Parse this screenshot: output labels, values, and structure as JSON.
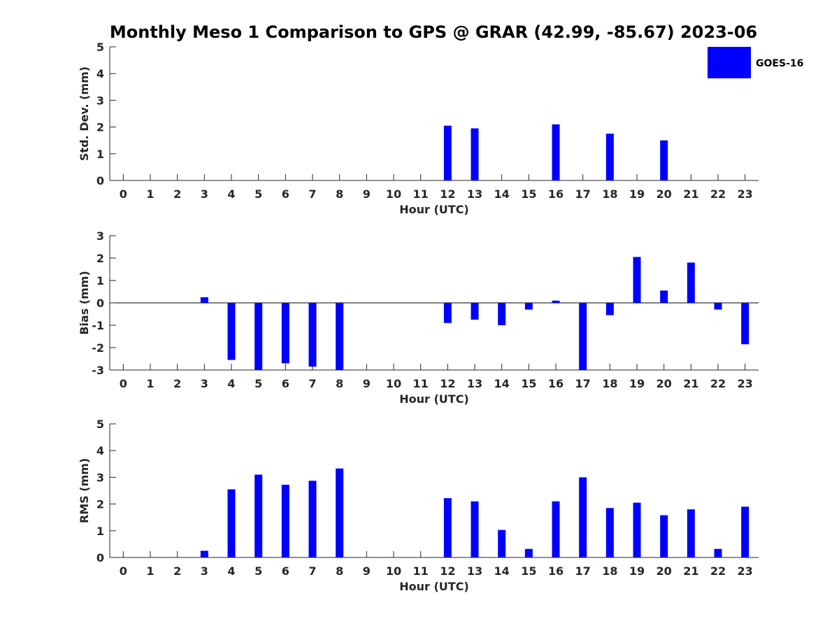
{
  "title": "Monthly Meso 1 Comparison to GPS @ GRAR (42.99, -85.67) 2023-06",
  "legend": {
    "label": "GOES-16",
    "color": "#0000ff",
    "placement": "top-right"
  },
  "colors": {
    "bar": "#0000ff",
    "axis": "#262626",
    "zero_line": "#000000"
  },
  "chart_data": [
    {
      "type": "bar",
      "xlabel": "Hour (UTC)",
      "ylabel": "Std. Dev. (mm)",
      "ylim": [
        0,
        5
      ],
      "yticks": [
        0,
        1,
        2,
        3,
        4,
        5
      ],
      "categories": [
        "0",
        "1",
        "2",
        "3",
        "4",
        "5",
        "6",
        "7",
        "8",
        "9",
        "10",
        "11",
        "12",
        "13",
        "14",
        "15",
        "16",
        "17",
        "18",
        "19",
        "20",
        "21",
        "22",
        "23"
      ],
      "series": [
        {
          "name": "GOES-16",
          "values": [
            null,
            null,
            null,
            null,
            null,
            null,
            null,
            null,
            null,
            null,
            null,
            null,
            2.05,
            1.95,
            null,
            null,
            2.1,
            null,
            1.75,
            null,
            1.5,
            null,
            null,
            null
          ]
        }
      ],
      "grid": false
    },
    {
      "type": "bar",
      "xlabel": "Hour (UTC)",
      "ylabel": "Bias (mm)",
      "ylim": [
        -3,
        3
      ],
      "yticks": [
        -3,
        -2,
        -1,
        0,
        1,
        2,
        3
      ],
      "categories": [
        "0",
        "1",
        "2",
        "3",
        "4",
        "5",
        "6",
        "7",
        "8",
        "9",
        "10",
        "11",
        "12",
        "13",
        "14",
        "15",
        "16",
        "17",
        "18",
        "19",
        "20",
        "21",
        "22",
        "23"
      ],
      "series": [
        {
          "name": "GOES-16",
          "values": [
            null,
            null,
            null,
            0.25,
            -2.55,
            -3.1,
            -2.7,
            -2.85,
            -3.3,
            null,
            null,
            null,
            -0.9,
            -0.75,
            -1.0,
            -0.3,
            0.1,
            -3.0,
            -0.55,
            2.05,
            0.55,
            1.8,
            -0.3,
            -1.85
          ]
        }
      ],
      "grid": false
    },
    {
      "type": "bar",
      "xlabel": "Hour (UTC)",
      "ylabel": "RMS (mm)",
      "ylim": [
        0,
        5
      ],
      "yticks": [
        0,
        1,
        2,
        3,
        4,
        5
      ],
      "categories": [
        "0",
        "1",
        "2",
        "3",
        "4",
        "5",
        "6",
        "7",
        "8",
        "9",
        "10",
        "11",
        "12",
        "13",
        "14",
        "15",
        "16",
        "17",
        "18",
        "19",
        "20",
        "21",
        "22",
        "23"
      ],
      "series": [
        {
          "name": "GOES-16",
          "values": [
            null,
            null,
            null,
            0.25,
            2.55,
            3.1,
            2.72,
            2.87,
            3.33,
            null,
            null,
            null,
            2.22,
            2.1,
            1.03,
            0.32,
            2.1,
            3.0,
            1.85,
            2.05,
            1.58,
            1.8,
            0.32,
            1.9
          ]
        }
      ],
      "grid": false
    }
  ]
}
